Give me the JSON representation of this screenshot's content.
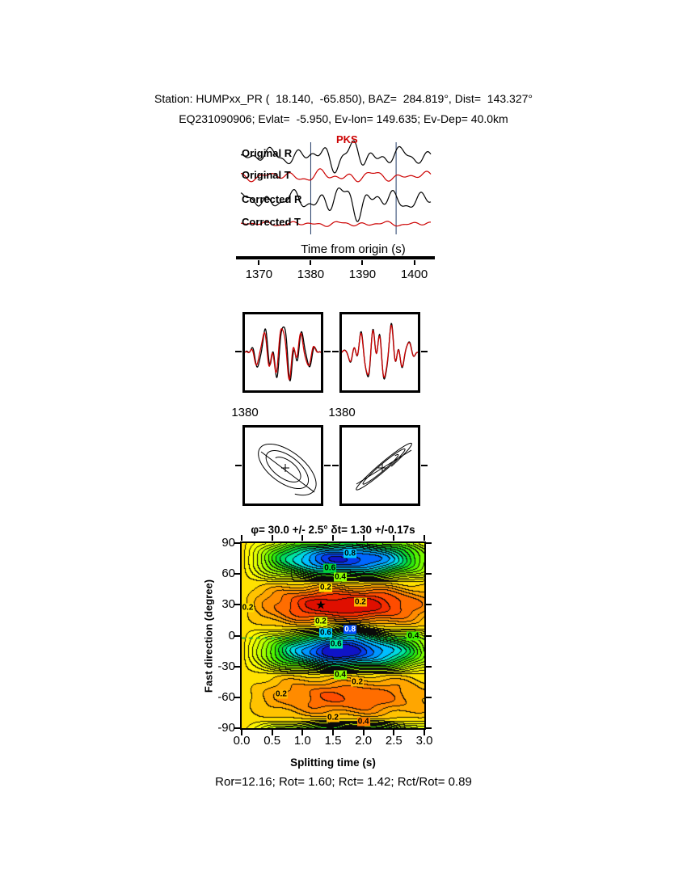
{
  "header": {
    "line1": "Station: HUMPxx_PR (  18.140,  -65.850), BAZ=  284.819°, Dist=  143.327°",
    "line2": "EQ231090906; Evlat=  -5.950, Ev-lon= 149.635; Ev-Dep= 40.0km"
  },
  "footer": {
    "stats": "Ror=12.16; Rot= 1.60; Rct= 1.42; Rct/Rot= 0.89"
  },
  "chart_data": [
    {
      "type": "line",
      "id": "waveform-traces",
      "phase_label": "PKS",
      "xlabel": "Time from origin (s)",
      "xlim": [
        1366.5,
        1403.2
      ],
      "xticks": [
        "1370",
        "1380",
        "1390",
        "1400"
      ],
      "window_times": [
        1380,
        1396.5
      ],
      "traces": [
        {
          "label": "Original R",
          "color": "#000000",
          "baseline": 25,
          "scale": 9,
          "amps": [
            0.55,
            0.35,
            0.42
          ],
          "freqs": [
            46,
            83,
            27
          ],
          "phases": [
            0.3,
            1.9,
            4.1
          ],
          "burst": {
            "center": 0.56,
            "width": 0.17,
            "gain": 2.1
          }
        },
        {
          "label": "Original T",
          "color": "#cc0000",
          "baseline": 50,
          "scale": 5.5,
          "amps": [
            0.5,
            0.35,
            0.4
          ],
          "freqs": [
            44,
            78,
            25
          ],
          "phases": [
            2.2,
            0.6,
            3.1
          ],
          "burst": {
            "center": 0.5,
            "width": 0.2,
            "gain": 1.5
          }
        },
        {
          "label": "Corrected R",
          "color": "#000000",
          "baseline": 80,
          "scale": 10,
          "amps": [
            0.55,
            0.33,
            0.4
          ],
          "freqs": [
            47,
            85,
            26
          ],
          "phases": [
            1.2,
            2.7,
            0.8
          ],
          "burst": {
            "center": 0.58,
            "width": 0.18,
            "gain": 2.2
          }
        },
        {
          "label": "Corrected T",
          "color": "#cc0000",
          "baseline": 109,
          "scale": 3.2,
          "amps": [
            0.45,
            0.3,
            0.35
          ],
          "freqs": [
            50,
            88,
            29
          ],
          "phases": [
            0.9,
            2.3,
            5.1
          ],
          "burst": {
            "center": 0.55,
            "width": 0.2,
            "gain": 1.1
          }
        }
      ]
    },
    {
      "type": "line",
      "id": "analysis-window-seismograms",
      "panels": [
        {
          "start_label": "1380",
          "traces": [
            {
              "color": "#000000",
              "scale": 30,
              "comp": [
                [
                  0.85,
                  4.3,
                  0.5
                ],
                [
                  0.5,
                  7.6,
                  2.4
                ],
                [
                  0.3,
                  11.0,
                  1.1
                ]
              ]
            },
            {
              "color": "#cc0000",
              "scale": 27,
              "comp": [
                [
                  0.85,
                  4.3,
                  0.95
                ],
                [
                  0.5,
                  7.6,
                  2.9
                ],
                [
                  0.3,
                  11.0,
                  1.6
                ]
              ]
            }
          ]
        },
        {
          "start_label": "1380",
          "traces": [
            {
              "color": "#000000",
              "scale": 30,
              "comp": [
                [
                  0.8,
                  4.6,
                  1.2
                ],
                [
                  0.55,
                  8.2,
                  0.2
                ],
                [
                  0.28,
                  12.0,
                  2.0
                ]
              ]
            },
            {
              "color": "#cc0000",
              "scale": 28,
              "comp": [
                [
                  0.8,
                  4.6,
                  1.25
                ],
                [
                  0.55,
                  8.2,
                  0.25
                ],
                [
                  0.28,
                  12.0,
                  2.05
                ]
              ]
            }
          ]
        }
      ]
    },
    {
      "type": "scatter",
      "id": "particle-motion",
      "panels": [
        {
          "f": 2.6,
          "dphi": 0.95,
          "a": 40,
          "decay": 0.62,
          "line": [
            20,
            30,
            86,
            80
          ]
        },
        {
          "f": 2.3,
          "dphi": 2.9,
          "a": 38,
          "decay": 0.5,
          "line": [
            18,
            70,
            86,
            28
          ]
        }
      ]
    },
    {
      "type": "heatmap",
      "id": "splitting-misfit-surface",
      "title": "φ= 30.0 +/- 2.5°  δt= 1.30 +/-0.17s",
      "xlabel": "Splitting time (s)",
      "ylabel": "Fast direction (degree)",
      "xlim": [
        0,
        3
      ],
      "ylim": [
        -90,
        90
      ],
      "xticks": [
        "0.0",
        "0.5",
        "1.0",
        "1.5",
        "2.0",
        "2.5",
        "3.0"
      ],
      "yticks": [
        90,
        60,
        30,
        0,
        -30,
        -60,
        -90
      ],
      "best": {
        "phi": 30.0,
        "phi_err": 2.5,
        "dt": 1.3,
        "dt_err": 0.17
      },
      "model": {
        "base": 0.3,
        "h_period": 3.4,
        "phi0": 30,
        "depth_main": 0.3,
        "depth_sec": 0.18,
        "max_amp": 0.66,
        "interval": 0.04,
        "bumps": [
          [
            1.75,
            4,
            0.35,
            9,
            0.22
          ],
          [
            1.5,
            -15,
            0.3,
            8,
            0.1
          ]
        ]
      },
      "reference_line": {
        "phi": -2,
        "color": "#00a040"
      },
      "colormap": [
        [
          0.0,
          "#d40000"
        ],
        [
          0.08,
          "#ff3c00"
        ],
        [
          0.16,
          "#ff7d00"
        ],
        [
          0.24,
          "#ffb400"
        ],
        [
          0.3,
          "#ffe100"
        ],
        [
          0.36,
          "#ffff00"
        ],
        [
          0.44,
          "#d7ff00"
        ],
        [
          0.52,
          "#8cff00"
        ],
        [
          0.6,
          "#3cf000"
        ],
        [
          0.68,
          "#00d23c"
        ],
        [
          0.74,
          "#00e6a0"
        ],
        [
          0.8,
          "#00d2ff"
        ],
        [
          0.86,
          "#0096ff"
        ],
        [
          0.92,
          "#0050ff"
        ],
        [
          1.0,
          "#1400b4"
        ]
      ],
      "annotations": [
        {
          "text": "0.8",
          "dt": 1.78,
          "phi": 80,
          "bg": "#00c8ff"
        },
        {
          "text": "0.6",
          "dt": 1.45,
          "phi": 66,
          "bg": "#00d23c"
        },
        {
          "text": "0.4",
          "dt": 1.62,
          "phi": 57,
          "bg": "#8cff00"
        },
        {
          "text": "0.2",
          "dt": 1.38,
          "phi": 47,
          "bg": "#ffe100"
        },
        {
          "text": "0.2",
          "dt": 1.95,
          "phi": 33,
          "bg": "#ffb400"
        },
        {
          "text": "0.2",
          "dt": 0.1,
          "phi": 27,
          "bg": "#ffe100"
        },
        {
          "text": "0.2",
          "dt": 1.3,
          "phi": 14,
          "bg": "#d7ff00"
        },
        {
          "text": "0.8",
          "dt": 1.78,
          "phi": 6,
          "bg": "#0050ff",
          "fg": "#ffffff"
        },
        {
          "text": "0.6",
          "dt": 1.38,
          "phi": 3,
          "bg": "#00d2ff"
        },
        {
          "text": "0.4",
          "dt": 2.82,
          "phi": 0,
          "bg": "#3cf000"
        },
        {
          "text": "0.6",
          "dt": 1.55,
          "phi": -8,
          "bg": "#00e6a0"
        },
        {
          "text": "0.4",
          "dt": 1.62,
          "phi": -38,
          "bg": "#8cff00"
        },
        {
          "text": "0.2",
          "dt": 1.9,
          "phi": -45,
          "bg": "#ffb400"
        },
        {
          "text": "0.2",
          "dt": 0.65,
          "phi": -57,
          "bg": "#ffb400"
        },
        {
          "text": "0.2",
          "dt": 1.5,
          "phi": -80,
          "bg": "#ffb400"
        },
        {
          "text": "0.4",
          "dt": 2.0,
          "phi": -84,
          "bg": "#ff7d00"
        }
      ]
    }
  ]
}
